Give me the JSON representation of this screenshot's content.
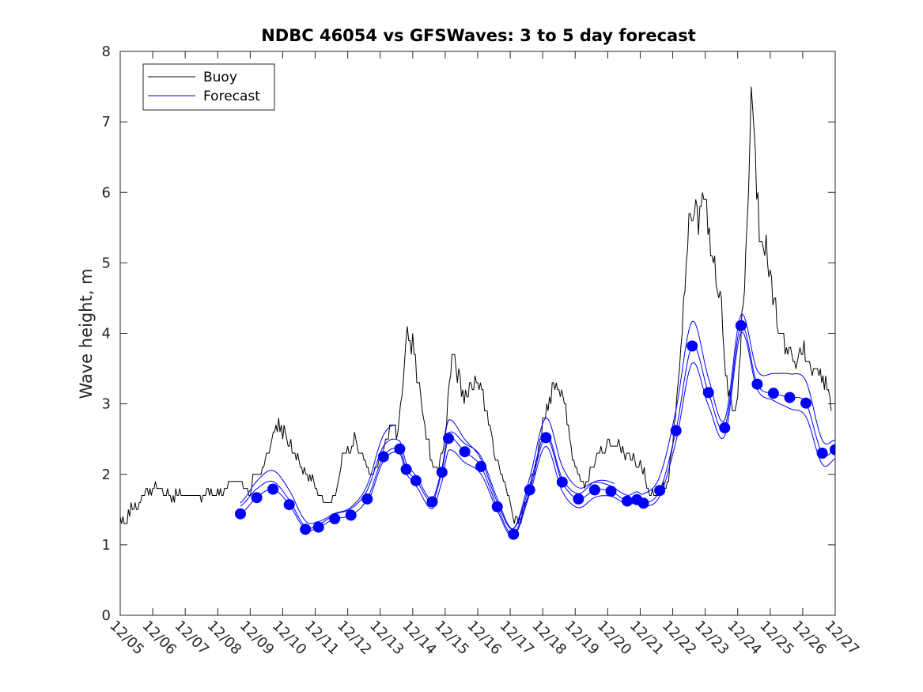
{
  "chart_data": {
    "type": "line",
    "title": "NDBC 46054 vs GFSWaves: 3 to 5 day forecast",
    "xlabel": "",
    "ylabel": "Wave height, m",
    "xlim": [
      0,
      22
    ],
    "ylim": [
      0,
      8
    ],
    "yticks": [
      0,
      1,
      2,
      3,
      4,
      5,
      6,
      7,
      8
    ],
    "categories": [
      "12/05",
      "12/06",
      "12/07",
      "12/08",
      "12/09",
      "12/10",
      "12/11",
      "12/12",
      "12/13",
      "12/14",
      "12/15",
      "12/16",
      "12/17",
      "12/18",
      "12/19",
      "12/20",
      "12/21",
      "12/22",
      "12/23",
      "12/24",
      "12/25",
      "12/26",
      "12/27"
    ],
    "legend": {
      "position": "top-left",
      "entries": [
        "Buoy",
        "Forecast"
      ]
    },
    "colors": {
      "buoy": "#000000",
      "forecast": "#0000ff"
    },
    "series": [
      {
        "name": "Buoy",
        "anchors": [
          [
            0.0,
            1.35
          ],
          [
            0.3,
            1.45
          ],
          [
            0.6,
            1.6
          ],
          [
            1.0,
            1.85
          ],
          [
            1.5,
            1.7
          ],
          [
            2.0,
            1.72
          ],
          [
            2.5,
            1.72
          ],
          [
            3.0,
            1.8
          ],
          [
            3.5,
            1.9
          ],
          [
            4.0,
            1.85
          ],
          [
            4.3,
            2.05
          ],
          [
            4.7,
            2.5
          ],
          [
            4.9,
            2.8
          ],
          [
            5.2,
            2.4
          ],
          [
            5.6,
            2.1
          ],
          [
            6.0,
            1.85
          ],
          [
            6.2,
            1.6
          ],
          [
            6.4,
            1.55
          ],
          [
            6.6,
            1.8
          ],
          [
            6.9,
            2.3
          ],
          [
            7.2,
            2.5
          ],
          [
            7.5,
            2.2
          ],
          [
            7.8,
            2.0
          ],
          [
            8.1,
            2.4
          ],
          [
            8.3,
            2.6
          ],
          [
            8.5,
            2.5
          ],
          [
            8.7,
            3.2
          ],
          [
            8.85,
            4.1
          ],
          [
            9.0,
            3.8
          ],
          [
            9.2,
            3.2
          ],
          [
            9.4,
            2.6
          ],
          [
            9.6,
            2.2
          ],
          [
            9.8,
            2.0
          ],
          [
            10.0,
            2.6
          ],
          [
            10.15,
            3.5
          ],
          [
            10.25,
            3.8
          ],
          [
            10.4,
            3.4
          ],
          [
            10.6,
            3.1
          ],
          [
            10.9,
            3.4
          ],
          [
            11.2,
            3.0
          ],
          [
            11.5,
            2.4
          ],
          [
            11.8,
            1.9
          ],
          [
            12.1,
            1.45
          ],
          [
            12.3,
            1.4
          ],
          [
            12.6,
            1.8
          ],
          [
            12.9,
            2.4
          ],
          [
            13.1,
            2.9
          ],
          [
            13.3,
            3.2
          ],
          [
            13.5,
            3.2
          ],
          [
            13.7,
            2.8
          ],
          [
            13.9,
            2.3
          ],
          [
            14.1,
            2.0
          ],
          [
            14.3,
            1.85
          ],
          [
            14.5,
            2.1
          ],
          [
            14.8,
            2.3
          ],
          [
            15.0,
            2.5
          ],
          [
            15.3,
            2.4
          ],
          [
            15.6,
            2.3
          ],
          [
            15.9,
            2.2
          ],
          [
            16.1,
            2.0
          ],
          [
            16.3,
            1.75
          ],
          [
            16.5,
            1.7
          ],
          [
            16.8,
            1.8
          ],
          [
            17.0,
            2.3
          ],
          [
            17.1,
            2.9
          ],
          [
            17.25,
            3.8
          ],
          [
            17.4,
            4.8
          ],
          [
            17.55,
            5.7
          ],
          [
            17.7,
            6.0
          ],
          [
            17.8,
            5.5
          ],
          [
            17.95,
            6.2
          ],
          [
            18.1,
            5.3
          ],
          [
            18.3,
            4.8
          ],
          [
            18.5,
            4.3
          ],
          [
            18.65,
            3.4
          ],
          [
            18.8,
            3.0
          ],
          [
            18.95,
            2.8
          ],
          [
            19.05,
            3.6
          ],
          [
            19.2,
            4.6
          ],
          [
            19.35,
            6.5
          ],
          [
            19.45,
            7.6
          ],
          [
            19.55,
            6.2
          ],
          [
            19.7,
            5.5
          ],
          [
            19.85,
            5.3
          ],
          [
            20.0,
            4.9
          ],
          [
            20.2,
            4.2
          ],
          [
            20.4,
            3.9
          ],
          [
            20.6,
            3.7
          ],
          [
            20.8,
            3.6
          ],
          [
            21.0,
            3.8
          ],
          [
            21.2,
            3.6
          ],
          [
            21.4,
            3.5
          ],
          [
            21.6,
            3.3
          ],
          [
            21.8,
            3.2
          ],
          [
            21.9,
            2.7
          ]
        ]
      },
      {
        "name": "Forecast",
        "points": [
          [
            3.7,
            1.44
          ],
          [
            4.2,
            1.67
          ],
          [
            4.7,
            1.79
          ],
          [
            5.2,
            1.57
          ],
          [
            5.7,
            1.22
          ],
          [
            6.1,
            1.25
          ],
          [
            6.6,
            1.37
          ],
          [
            7.1,
            1.42
          ],
          [
            7.6,
            1.65
          ],
          [
            8.1,
            2.25
          ],
          [
            8.6,
            2.36
          ],
          [
            8.8,
            2.07
          ],
          [
            9.1,
            1.91
          ],
          [
            9.6,
            1.61
          ],
          [
            9.9,
            2.03
          ],
          [
            10.1,
            2.51
          ],
          [
            10.6,
            2.32
          ],
          [
            11.1,
            2.11
          ],
          [
            11.6,
            1.54
          ],
          [
            12.1,
            1.15
          ],
          [
            12.6,
            1.78
          ],
          [
            13.1,
            2.52
          ],
          [
            13.6,
            1.89
          ],
          [
            14.1,
            1.65
          ],
          [
            14.6,
            1.78
          ],
          [
            15.1,
            1.76
          ],
          [
            15.6,
            1.62
          ],
          [
            15.9,
            1.64
          ],
          [
            16.1,
            1.59
          ],
          [
            16.6,
            1.77
          ],
          [
            17.1,
            2.62
          ],
          [
            17.6,
            3.82
          ],
          [
            18.1,
            3.16
          ],
          [
            18.6,
            2.66
          ],
          [
            19.1,
            4.11
          ],
          [
            19.6,
            3.28
          ],
          [
            20.1,
            3.15
          ],
          [
            20.6,
            3.09
          ],
          [
            21.1,
            3.01
          ],
          [
            21.6,
            2.3
          ],
          [
            22.0,
            2.35
          ]
        ],
        "ensemble": [
          {
            "start": 3.7,
            "end": 8.5,
            "offset": 0.12
          },
          {
            "start": 3.7,
            "end": 15.2,
            "offset": 0.06
          },
          {
            "start": 3.7,
            "end": 22.0,
            "offset": 0.0
          },
          {
            "start": 7.6,
            "end": 22.0,
            "offset": -0.06
          },
          {
            "start": 10.0,
            "end": 22.0,
            "offset": 0.1
          }
        ]
      }
    ]
  }
}
